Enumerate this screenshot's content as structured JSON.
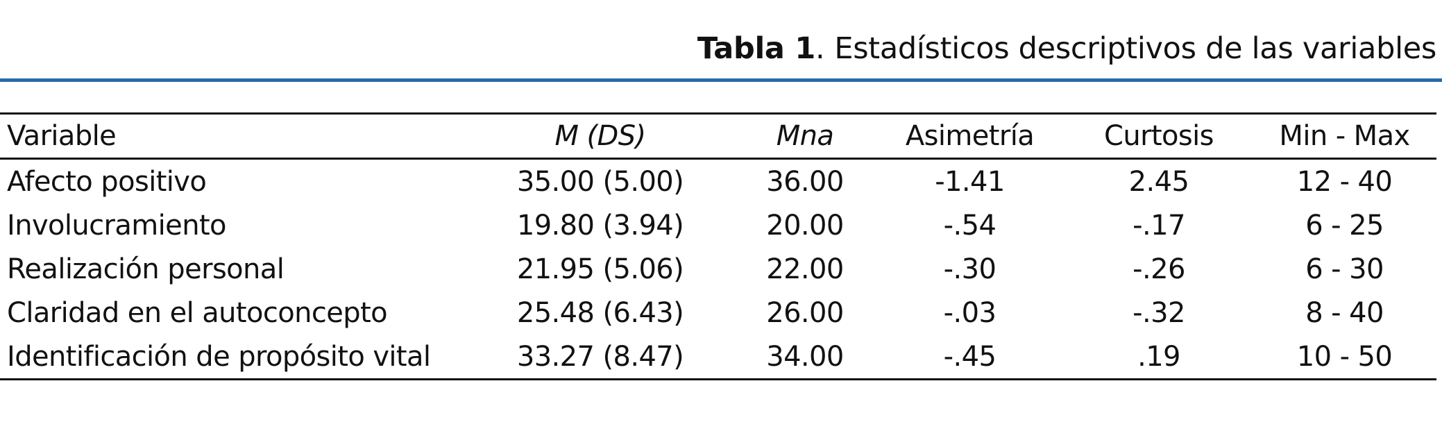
{
  "caption": {
    "label": "Tabla 1",
    "separator": ".",
    "text": "Estadísticos descriptivos de las variables"
  },
  "colors": {
    "accent_rule": "#2a6aa8",
    "text": "#111111"
  },
  "table": {
    "headers": [
      "Variable",
      "M (DS)",
      "Mna",
      "Asimetría",
      "Curtosis",
      "Min - Max"
    ],
    "rows": [
      [
        "Afecto positivo",
        "35.00 (5.00)",
        "36.00",
        "-1.41",
        "2.45",
        "12 - 40"
      ],
      [
        "Involucramiento",
        "19.80 (3.94)",
        "20.00",
        "-.54",
        "-.17",
        "6 - 25"
      ],
      [
        "Realización personal",
        "21.95 (5.06)",
        "22.00",
        "-.30",
        "-.26",
        "6 - 30"
      ],
      [
        "Claridad en el autoconcepto",
        "25.48 (6.43)",
        "26.00",
        "-.03",
        "-.32",
        "8 - 40"
      ],
      [
        "Identificación de propósito vital",
        "33.27 (8.47)",
        "34.00",
        "-.45",
        ".19",
        "10 - 50"
      ]
    ]
  }
}
